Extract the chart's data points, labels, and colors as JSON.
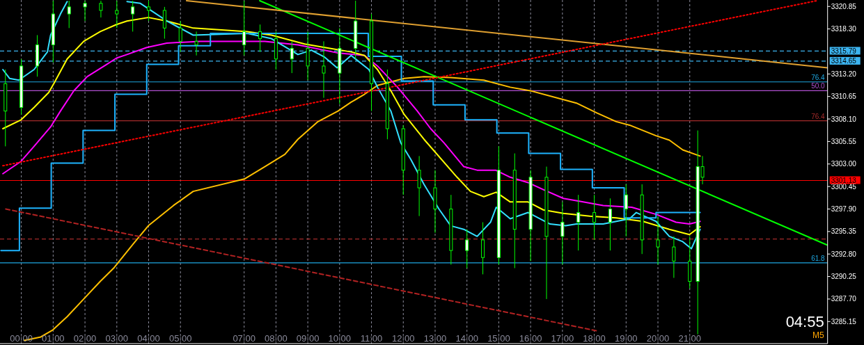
{
  "chart_data": {
    "type": "candlestick",
    "x": [
      -0.5,
      0,
      0.5,
      1,
      1.5,
      2,
      2.5,
      3,
      3.5,
      4,
      4.5,
      5,
      5.5,
      7,
      7.5,
      8,
      8.5,
      9,
      9.5,
      10,
      10.5,
      11,
      11.5,
      12,
      12.5,
      13,
      13.5,
      14,
      14.5,
      15,
      15.5,
      16,
      16.5,
      17,
      17.5,
      18,
      18.5,
      19,
      19.5,
      20,
      20.5,
      21,
      21.25,
      21.4
    ],
    "ohlc": [
      [
        3312.1,
        3313.7,
        3305.0,
        3309.0
      ],
      [
        3309.4,
        3314.9,
        3308.6,
        3314.1
      ],
      [
        3314.1,
        3317.6,
        3312.9,
        3316.5
      ],
      [
        3316.5,
        3321.5,
        3314.5,
        3320.0
      ],
      [
        3320.0,
        3321.5,
        3318.4,
        3320.8
      ],
      [
        3320.8,
        3321.5,
        3319.2,
        3321.2
      ],
      [
        3321.2,
        3321.5,
        3319.6,
        3320.4
      ],
      [
        3320.4,
        3321.5,
        3318.4,
        3320.0
      ],
      [
        3320.0,
        3321.5,
        3318.0,
        3320.8
      ],
      [
        3320.8,
        3321.5,
        3319.2,
        3320.4
      ],
      [
        3320.4,
        3320.8,
        3317.2,
        3318.4
      ],
      [
        3318.4,
        3319.2,
        3315.7,
        3316.9
      ],
      [
        3316.9,
        3318.0,
        3315.3,
        3316.5
      ],
      [
        3316.5,
        3321.5,
        3315.3,
        3318.0
      ],
      [
        3318.0,
        3318.8,
        3315.7,
        3317.2
      ],
      [
        3317.2,
        3318.0,
        3313.7,
        3314.9
      ],
      [
        3314.9,
        3316.9,
        3313.3,
        3316.1
      ],
      [
        3316.1,
        3318.0,
        3312.5,
        3314.1
      ],
      [
        3314.1,
        3316.9,
        3310.5,
        3313.3
      ],
      [
        3313.3,
        3318.4,
        3309.8,
        3316.1
      ],
      [
        3316.1,
        3321.5,
        3314.9,
        3319.2
      ],
      [
        3319.2,
        3320.0,
        3309.0,
        3312.1
      ],
      [
        3312.1,
        3313.7,
        3305.8,
        3307.0
      ],
      [
        3307.0,
        3307.4,
        3299.5,
        3302.3
      ],
      [
        3302.3,
        3303.9,
        3297.1,
        3300.3
      ],
      [
        3300.3,
        3302.3,
        3295.2,
        3297.9
      ],
      [
        3297.9,
        3299.5,
        3291.6,
        3293.2
      ],
      [
        3293.2,
        3295.6,
        3291.2,
        3294.4
      ],
      [
        3294.4,
        3296.4,
        3290.5,
        3292.4
      ],
      [
        3292.4,
        3305.0,
        3291.6,
        3302.3
      ],
      [
        3302.3,
        3304.2,
        3291.2,
        3295.6
      ],
      [
        3295.6,
        3302.3,
        3292.0,
        3301.5
      ],
      [
        3301.5,
        3302.7,
        3287.7,
        3294.8
      ],
      [
        3294.8,
        3298.7,
        3291.6,
        3296.4
      ],
      [
        3296.4,
        3299.5,
        3293.2,
        3297.5
      ],
      [
        3297.5,
        3299.5,
        3294.4,
        3296.4
      ],
      [
        3296.4,
        3299.1,
        3293.2,
        3297.9
      ],
      [
        3297.9,
        3300.7,
        3294.8,
        3299.5
      ],
      [
        3299.5,
        3300.7,
        3292.8,
        3294.4
      ],
      [
        3294.4,
        3297.1,
        3291.6,
        3293.6
      ],
      [
        3293.6,
        3294.8,
        3290.1,
        3292.0
      ],
      [
        3292.0,
        3294.8,
        3288.9,
        3289.7
      ],
      [
        3289.7,
        3306.8,
        3283.7,
        3302.7
      ],
      [
        3302.7,
        3303.9,
        3300.7,
        3301.5
      ]
    ],
    "series": [
      {
        "type": "line",
        "color": "#ffc000",
        "x": [
          0.09,
          0.61,
          0.99,
          1.44,
          1.96,
          2.48,
          2.9,
          3.53,
          3.99,
          4.78,
          5.4,
          7.01,
          7.65,
          8.28,
          8.69,
          9.32,
          9.95,
          10.36,
          10.78,
          11.19,
          11.61,
          12.03,
          12.65,
          13.49,
          14.53,
          15.36,
          15.99,
          17.44,
          18.07,
          18.69,
          19.11,
          19.94,
          20.36,
          20.78,
          21.325
        ],
        "values": [
          3283.0,
          3283.4,
          3284.2,
          3285.7,
          3287.7,
          3289.7,
          3291.2,
          3294.0,
          3296.0,
          3298.3,
          3299.9,
          3301.3,
          3302.7,
          3304.1,
          3305.8,
          3307.8,
          3309.0,
          3310.0,
          3310.9,
          3311.9,
          3312.3,
          3312.7,
          3312.9,
          3312.8,
          3312.5,
          3311.7,
          3311.3,
          3309.9,
          3308.8,
          3307.8,
          3307.4,
          3306.2,
          3305.7,
          3304.6,
          3303.9
        ]
      },
      {
        "type": "line",
        "color": "#ff00ff",
        "x": [
          -0.58,
          -0.01,
          0.4,
          0.92,
          1.23,
          1.65,
          2.07,
          2.69,
          2.99,
          3.32,
          3.94,
          4.57,
          5.61,
          7.65,
          8.69,
          9.92,
          10.78,
          11.19,
          11.82,
          12.44,
          12.86,
          13.28,
          13.9,
          14.32,
          14.9,
          15.36,
          15.92,
          16.4,
          17.03,
          17.65,
          18.28,
          19.18,
          19.94,
          20.57,
          20.99,
          21.325
        ],
        "values": [
          3301.9,
          3303.3,
          3305.0,
          3307.2,
          3309.0,
          3311.3,
          3312.9,
          3314.3,
          3315.0,
          3315.4,
          3316.2,
          3316.7,
          3316.9,
          3316.9,
          3316.5,
          3315.6,
          3315.3,
          3314.1,
          3311.7,
          3309.0,
          3307.0,
          3305.4,
          3302.7,
          3302.3,
          3302.3,
          3301.5,
          3300.9,
          3300.1,
          3299.1,
          3298.7,
          3298.3,
          3298.1,
          3297.3,
          3296.4,
          3296.2,
          3296.5
        ]
      },
      {
        "type": "line",
        "color": "#ffff00",
        "x": [
          -0.58,
          -0.01,
          0.4,
          0.86,
          1.02,
          1.44,
          1.96,
          2.48,
          2.99,
          3.32,
          3.99,
          4.57,
          5.4,
          7.1,
          7.86,
          8.9,
          9.53,
          10.36,
          10.78,
          11.19,
          11.61,
          12.03,
          12.65,
          13.69,
          14.11,
          14.53,
          14.92,
          15.36,
          15.92,
          16.4,
          17.03,
          17.86,
          18.69,
          19.53,
          20.36,
          20.99,
          21.325
        ],
        "values": [
          3307.0,
          3308.0,
          3309.4,
          3311.1,
          3312.1,
          3314.9,
          3316.9,
          3318.0,
          3318.8,
          3319.2,
          3319.6,
          3319.2,
          3318.4,
          3318.0,
          3317.6,
          3316.6,
          3316.2,
          3315.7,
          3315.3,
          3313.7,
          3311.3,
          3308.6,
          3305.8,
          3301.5,
          3299.9,
          3299.3,
          3299.8,
          3298.7,
          3298.7,
          3297.8,
          3297.4,
          3297.1,
          3296.9,
          3296.5,
          3295.6,
          3295.0,
          3295.9
        ]
      },
      {
        "type": "line",
        "color": "#33e0ff",
        "x": [
          -0.58,
          -0.37,
          -0.08,
          0.4,
          0.82,
          0.92,
          1.23,
          1.44,
          1.9,
          3.32,
          3.74,
          4.57,
          5.4,
          7.1,
          7.86,
          8.69,
          9.11,
          9.53,
          9.92,
          10.36,
          10.92,
          11.19,
          11.61,
          11.92,
          12.24,
          12.65,
          13.12,
          13.49,
          13.9,
          14.32,
          14.74,
          14.92,
          15.36,
          15.92,
          16.61,
          17.1,
          17.44,
          18.28,
          19.11,
          19.32,
          19.94,
          20.36,
          20.78,
          21.05,
          21.325
        ],
        "values": [
          3313.7,
          3312.7,
          3312.5,
          3313.7,
          3315.7,
          3317.6,
          3320.0,
          3321.4,
          null,
          3321.4,
          3321.2,
          3319.2,
          3317.6,
          3317.8,
          3317.2,
          3315.4,
          3315.9,
          3315.1,
          3313.9,
          3315.3,
          3313.7,
          3311.7,
          3309.0,
          3305.4,
          3303.5,
          3300.7,
          3297.9,
          3296.0,
          3295.6,
          3294.8,
          3296.4,
          3298.1,
          3296.8,
          3297.5,
          3296.2,
          3296.0,
          3296.2,
          3296.2,
          3296.8,
          3297.5,
          3296.5,
          3294.8,
          3294.2,
          3293.4,
          3295.6
        ]
      },
      {
        "type": "step",
        "color": "#1eb4ff",
        "x": [
          -0.64,
          -0.06,
          0.94,
          1.94,
          2.94,
          3.94,
          4.94,
          5.94,
          10.9,
          11.94,
          12.94,
          13.94,
          14.94,
          15.94,
          16.94,
          17.94,
          18.94,
          19.94,
          21.325
        ],
        "values": [
          3293.2,
          3298.0,
          3303.1,
          3306.8,
          3310.9,
          3314.3,
          3316.4,
          3317.8,
          3315.2,
          3312.4,
          3309.7,
          3308.0,
          3306.5,
          3304.2,
          3302.4,
          3300.3,
          3296.9,
          3297.5,
          3297.5
        ]
      },
      {
        "type": "line",
        "color": "#00ff00",
        "x": [
          7.49,
          25.33
        ],
        "values": [
          3321.5,
          3293.8
        ]
      },
      {
        "type": "line",
        "color": "#e0a030",
        "x": [
          5.19,
          25.33
        ],
        "values": [
          3321.5,
          3313.9
        ]
      },
      {
        "type": "line",
        "color": "#ff0000",
        "line_style": "dotted",
        "x": [
          -0.58,
          24.99
        ],
        "values": [
          3302.8,
          3321.5
        ]
      },
      {
        "type": "line",
        "color": "#b22222",
        "line_style": "dashed",
        "x": [
          -0.49,
          18.07
        ],
        "values": [
          3297.9,
          3284.1
        ]
      }
    ],
    "xlim": [
      -0.67,
      25.33
    ],
    "xticks": [
      {
        "value": 0,
        "label": "00:00"
      },
      {
        "value": 1,
        "label": "01:00"
      },
      {
        "value": 2,
        "label": "02:00"
      },
      {
        "value": 3,
        "label": "03:00"
      },
      {
        "value": 4,
        "label": "04:00"
      },
      {
        "value": 5,
        "label": "05:00"
      },
      {
        "value": 7,
        "label": "07:00"
      },
      {
        "value": 8,
        "label": "08:00"
      },
      {
        "value": 9,
        "label": "09:00"
      },
      {
        "value": 10,
        "label": "10:00"
      },
      {
        "value": 11,
        "label": "11:00"
      },
      {
        "value": 12,
        "label": "12:00"
      },
      {
        "value": 13,
        "label": "13:00"
      },
      {
        "value": 14,
        "label": "14:00"
      },
      {
        "value": 15,
        "label": "15:00"
      },
      {
        "value": 16,
        "label": "16:00"
      },
      {
        "value": 17,
        "label": "17:00"
      },
      {
        "value": 18,
        "label": "18:00"
      },
      {
        "value": 19,
        "label": "19:00"
      },
      {
        "value": 20,
        "label": "20:00"
      },
      {
        "value": 21,
        "label": "21:00"
      }
    ],
    "ylim": [
      3282.65,
      3321.58
    ],
    "yticks": [
      {
        "value": 3285.15,
        "label": "3285.15"
      },
      {
        "value": 3287.7,
        "label": "3287.70"
      },
      {
        "value": 3290.25,
        "label": "3290.25"
      },
      {
        "value": 3292.8,
        "label": "3292.80"
      },
      {
        "value": 3295.35,
        "label": "3295.35"
      },
      {
        "value": 3297.9,
        "label": "3297.90"
      },
      {
        "value": 3300.45,
        "label": "3300.45"
      },
      {
        "value": 3303.0,
        "label": "3303.00"
      },
      {
        "value": 3305.55,
        "label": "3305.55"
      },
      {
        "value": 3308.1,
        "label": "3308.10"
      },
      {
        "value": 3310.65,
        "label": "3310.65"
      },
      {
        "value": 3313.2,
        "label": "3313.20"
      },
      {
        "value": 3318.3,
        "label": "3318.30"
      },
      {
        "value": 3320.85,
        "label": "3320.85"
      }
    ],
    "grid": "x",
    "ref_lines": [
      {
        "axis": "y",
        "value": 3315.79,
        "label": "3315.79",
        "color": "#3cb4f0",
        "line_style": "dashed"
      },
      {
        "axis": "y",
        "value": 3314.65,
        "label": "3314.65",
        "color": "#3cb4f0",
        "line_style": "dashed"
      },
      {
        "axis": "y",
        "value": 3312.3,
        "color": "#1ea7e1",
        "line_style": "solid"
      },
      {
        "axis": "y",
        "value": 3311.3,
        "color": "#b04fd0",
        "line_style": "solid"
      },
      {
        "axis": "y",
        "value": 3307.9,
        "color": "#a52a2a",
        "line_style": "solid"
      },
      {
        "axis": "y",
        "value": 3301.13,
        "label": "3301.13",
        "color": "#ff0000",
        "line_style": "solid"
      },
      {
        "axis": "y",
        "value": 3294.5,
        "color": "#a52a2a",
        "line_style": "dashed"
      },
      {
        "axis": "y",
        "value": 3291.8,
        "color": "#1ea7e1",
        "line_style": "solid"
      }
    ],
    "annotations": [
      "04:55",
      "M5",
      {
        "text": "76.4",
        "y": 3312.3
      },
      {
        "text": "50.0",
        "y": 3311.3
      },
      {
        "text": "76.4",
        "y": 3307.9
      },
      {
        "text": "61.8",
        "y": 3291.8
      }
    ]
  }
}
